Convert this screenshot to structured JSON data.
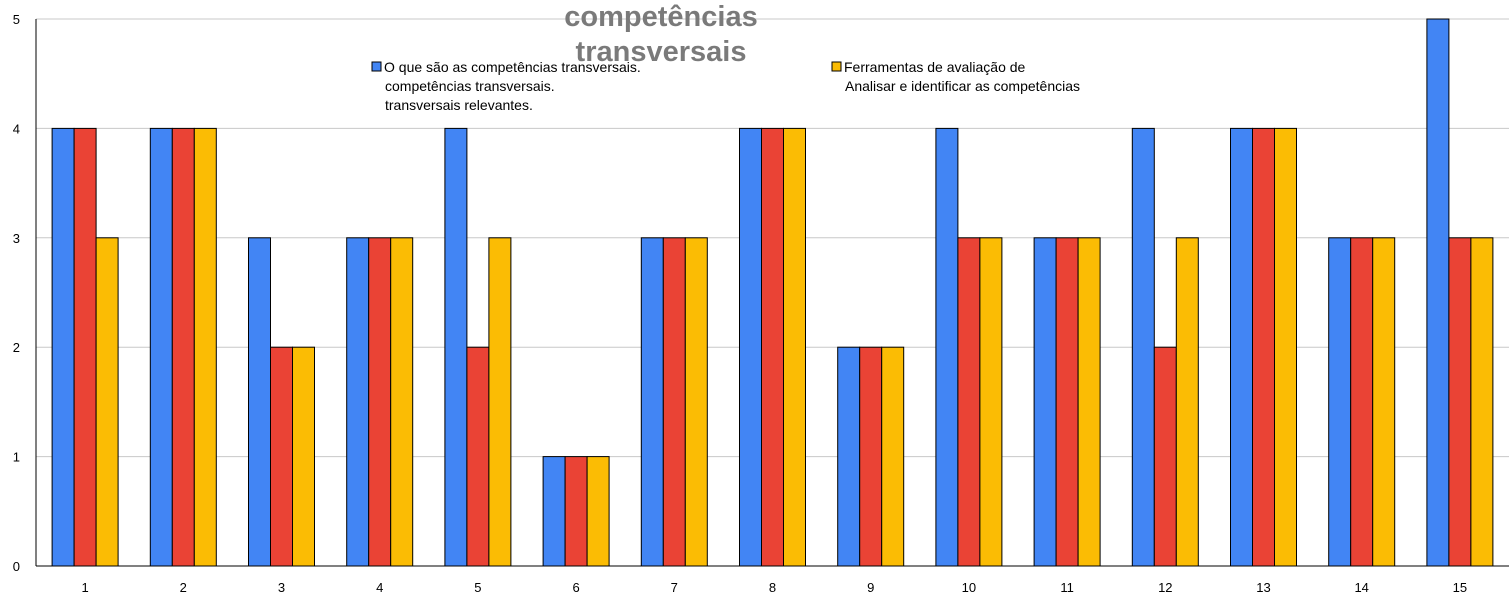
{
  "chart_data": {
    "type": "bar",
    "title_lines": [
      "competências",
      "transversais"
    ],
    "xlabel": "",
    "ylabel": "",
    "categories": [
      "1",
      "2",
      "3",
      "4",
      "5",
      "6",
      "7",
      "8",
      "9",
      "10",
      "11",
      "12",
      "13",
      "14",
      "15"
    ],
    "yticks": [
      "0",
      "1",
      "2",
      "3",
      "4",
      "5"
    ],
    "ylim": [
      0,
      5
    ],
    "grid": true,
    "legend_placement": "top",
    "series": [
      {
        "name_lines": [
          "O que são as competências transversais.",
          "competências transversais.",
          "transversais relevantes."
        ],
        "color": "#4285F4",
        "values": [
          4,
          4,
          3,
          3,
          4,
          1,
          3,
          4,
          2,
          4,
          3,
          4,
          4,
          3,
          5
        ]
      },
      {
        "name_lines": [],
        "color": "#EA4335",
        "values": [
          4,
          4,
          2,
          3,
          2,
          1,
          3,
          4,
          2,
          3,
          3,
          2,
          4,
          3,
          3
        ]
      },
      {
        "name_lines": [
          "Ferramentas de avaliação de",
          "Analisar e identificar as competências"
        ],
        "color": "#FBBC04",
        "values": [
          3,
          4,
          2,
          3,
          3,
          1,
          3,
          4,
          2,
          3,
          3,
          3,
          4,
          3,
          3
        ]
      }
    ]
  }
}
